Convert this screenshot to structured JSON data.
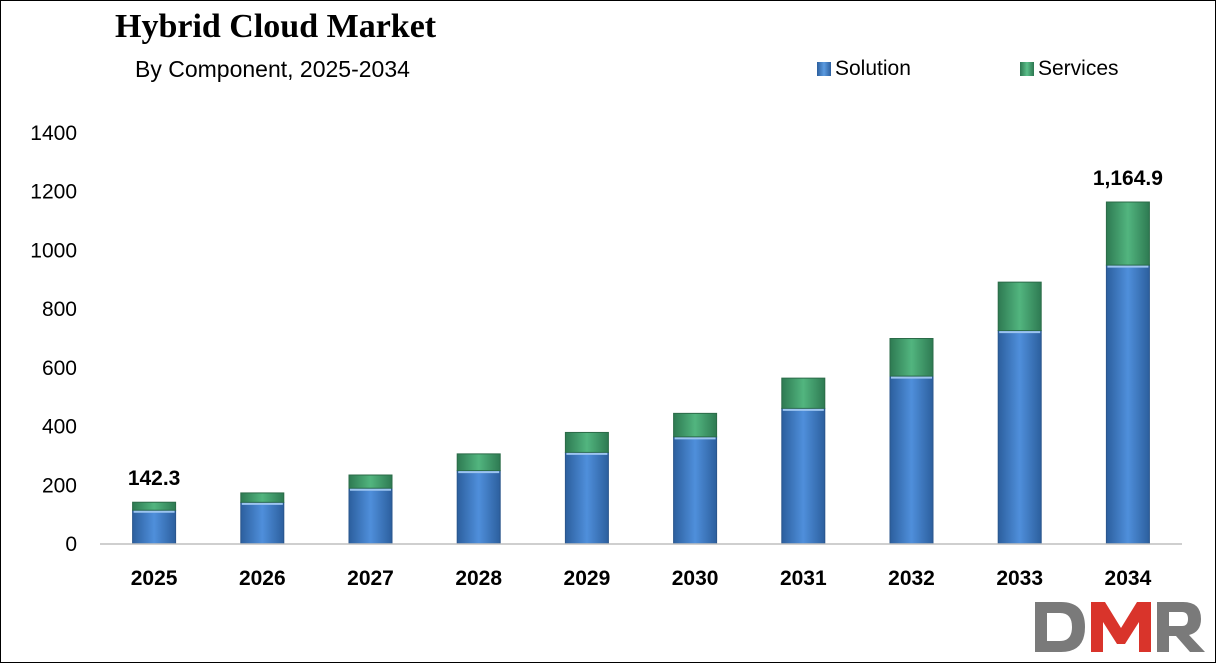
{
  "chart_data": {
    "type": "bar",
    "stacked": true,
    "title": "Hybrid Cloud Market",
    "subtitle": "By Component, 2025-2034",
    "categories": [
      "2025",
      "2026",
      "2027",
      "2028",
      "2029",
      "2030",
      "2031",
      "2032",
      "2033",
      "2034"
    ],
    "series": [
      {
        "name": "Solution",
        "color": "#3A7BC8",
        "values": [
          115,
          142,
          190,
          250,
          312,
          365,
          462,
          572,
          727,
          950
        ]
      },
      {
        "name": "Services",
        "color": "#3E9A6A",
        "values": [
          27.3,
          32,
          45,
          57,
          68,
          80,
          103,
          128,
          165,
          214.9
        ]
      }
    ],
    "totals": [
      142.3,
      174,
      235,
      307,
      380,
      445,
      565,
      700,
      892,
      1164.9
    ],
    "data_labels": [
      {
        "category": "2025",
        "text": "142.3"
      },
      {
        "category": "2034",
        "text": "1,164.9"
      }
    ],
    "ylim": [
      0,
      1400
    ],
    "yticks": [
      "0",
      "200",
      "400",
      "600",
      "800",
      "1000",
      "1200",
      "1400"
    ],
    "grid": false,
    "legend_position": "top-right"
  },
  "legend": {
    "solution": "Solution",
    "services": "Services"
  },
  "logo": {
    "text": "DMR",
    "colors": {
      "d": "#7a7a7a",
      "m": "#d9342b",
      "r": "#7a7a7a"
    }
  }
}
